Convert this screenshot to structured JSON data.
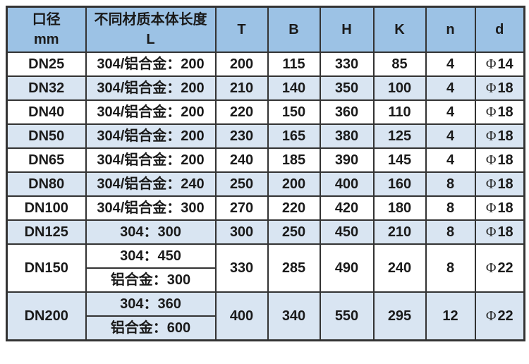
{
  "table": {
    "style": {
      "header_bg": "#9CC2E5",
      "alt_row_bg": "#D9E5F2",
      "border_color": "#333333",
      "text_color": "#1a1a1a"
    },
    "columns": [
      {
        "key": "dn",
        "label_lines": [
          "口径",
          "mm"
        ]
      },
      {
        "key": "L",
        "label_lines": [
          "不同材质本体长度",
          "L"
        ]
      },
      {
        "key": "T",
        "label_lines": [
          "T"
        ]
      },
      {
        "key": "B",
        "label_lines": [
          "B"
        ]
      },
      {
        "key": "H",
        "label_lines": [
          "H"
        ]
      },
      {
        "key": "K",
        "label_lines": [
          "K"
        ]
      },
      {
        "key": "n",
        "label_lines": [
          "n"
        ]
      },
      {
        "key": "d",
        "label_lines": [
          "d"
        ]
      }
    ],
    "rows": [
      {
        "dn": "DN25",
        "L": [
          "304/铝合金：200"
        ],
        "T": "200",
        "B": "115",
        "H": "330",
        "K": "85",
        "n": "4",
        "d": "Φ14",
        "shaded": false
      },
      {
        "dn": "DN32",
        "L": [
          "304/铝合金：200"
        ],
        "T": "210",
        "B": "140",
        "H": "350",
        "K": "100",
        "n": "4",
        "d": "Φ18",
        "shaded": true
      },
      {
        "dn": "DN40",
        "L": [
          "304/铝合金：200"
        ],
        "T": "220",
        "B": "150",
        "H": "360",
        "K": "110",
        "n": "4",
        "d": "Φ18",
        "shaded": false
      },
      {
        "dn": "DN50",
        "L": [
          "304/铝合金：200"
        ],
        "T": "230",
        "B": "165",
        "H": "380",
        "K": "125",
        "n": "4",
        "d": "Φ18",
        "shaded": true
      },
      {
        "dn": "DN65",
        "L": [
          "304/铝合金：200"
        ],
        "T": "240",
        "B": "185",
        "H": "390",
        "K": "145",
        "n": "4",
        "d": "Φ18",
        "shaded": false
      },
      {
        "dn": "DN80",
        "L": [
          "304/铝合金：240"
        ],
        "T": "250",
        "B": "200",
        "H": "400",
        "K": "160",
        "n": "8",
        "d": "Φ18",
        "shaded": true
      },
      {
        "dn": "DN100",
        "L": [
          "304/铝合金：300"
        ],
        "T": "270",
        "B": "220",
        "H": "420",
        "K": "180",
        "n": "8",
        "d": "Φ18",
        "shaded": false
      },
      {
        "dn": "DN125",
        "L": [
          "304：300"
        ],
        "T": "300",
        "B": "250",
        "H": "450",
        "K": "210",
        "n": "8",
        "d": "Φ18",
        "shaded": true
      },
      {
        "dn": "DN150",
        "L": [
          "304：450",
          "铝合金：300"
        ],
        "T": "330",
        "B": "285",
        "H": "490",
        "K": "240",
        "n": "8",
        "d": "Φ22",
        "shaded": false
      },
      {
        "dn": "DN200",
        "L": [
          "304：360",
          "铝合金：600"
        ],
        "T": "400",
        "B": "340",
        "H": "550",
        "K": "295",
        "n": "12",
        "d": "Φ22",
        "shaded": true
      }
    ]
  },
  "chart_data": {
    "type": "table",
    "columns": [
      "口径mm",
      "不同材质本体长度L",
      "T",
      "B",
      "H",
      "K",
      "n",
      "d"
    ],
    "rows": [
      [
        "DN25",
        "304/铝合金：200",
        200,
        115,
        330,
        85,
        4,
        "Φ14"
      ],
      [
        "DN32",
        "304/铝合金：200",
        210,
        140,
        350,
        100,
        4,
        "Φ18"
      ],
      [
        "DN40",
        "304/铝合金：200",
        220,
        150,
        360,
        110,
        4,
        "Φ18"
      ],
      [
        "DN50",
        "304/铝合金：200",
        230,
        165,
        380,
        125,
        4,
        "Φ18"
      ],
      [
        "DN65",
        "304/铝合金：200",
        240,
        185,
        390,
        145,
        4,
        "Φ18"
      ],
      [
        "DN80",
        "304/铝合金：240",
        250,
        200,
        400,
        160,
        8,
        "Φ18"
      ],
      [
        "DN100",
        "304/铝合金：300",
        270,
        220,
        420,
        180,
        8,
        "Φ18"
      ],
      [
        "DN125",
        "304：300",
        300,
        250,
        450,
        210,
        8,
        "Φ18"
      ],
      [
        "DN150",
        "304：450 / 铝合金：300",
        330,
        285,
        490,
        240,
        8,
        "Φ22"
      ],
      [
        "DN200",
        "304：360 / 铝合金：600",
        400,
        340,
        550,
        295,
        12,
        "Φ22"
      ]
    ]
  }
}
